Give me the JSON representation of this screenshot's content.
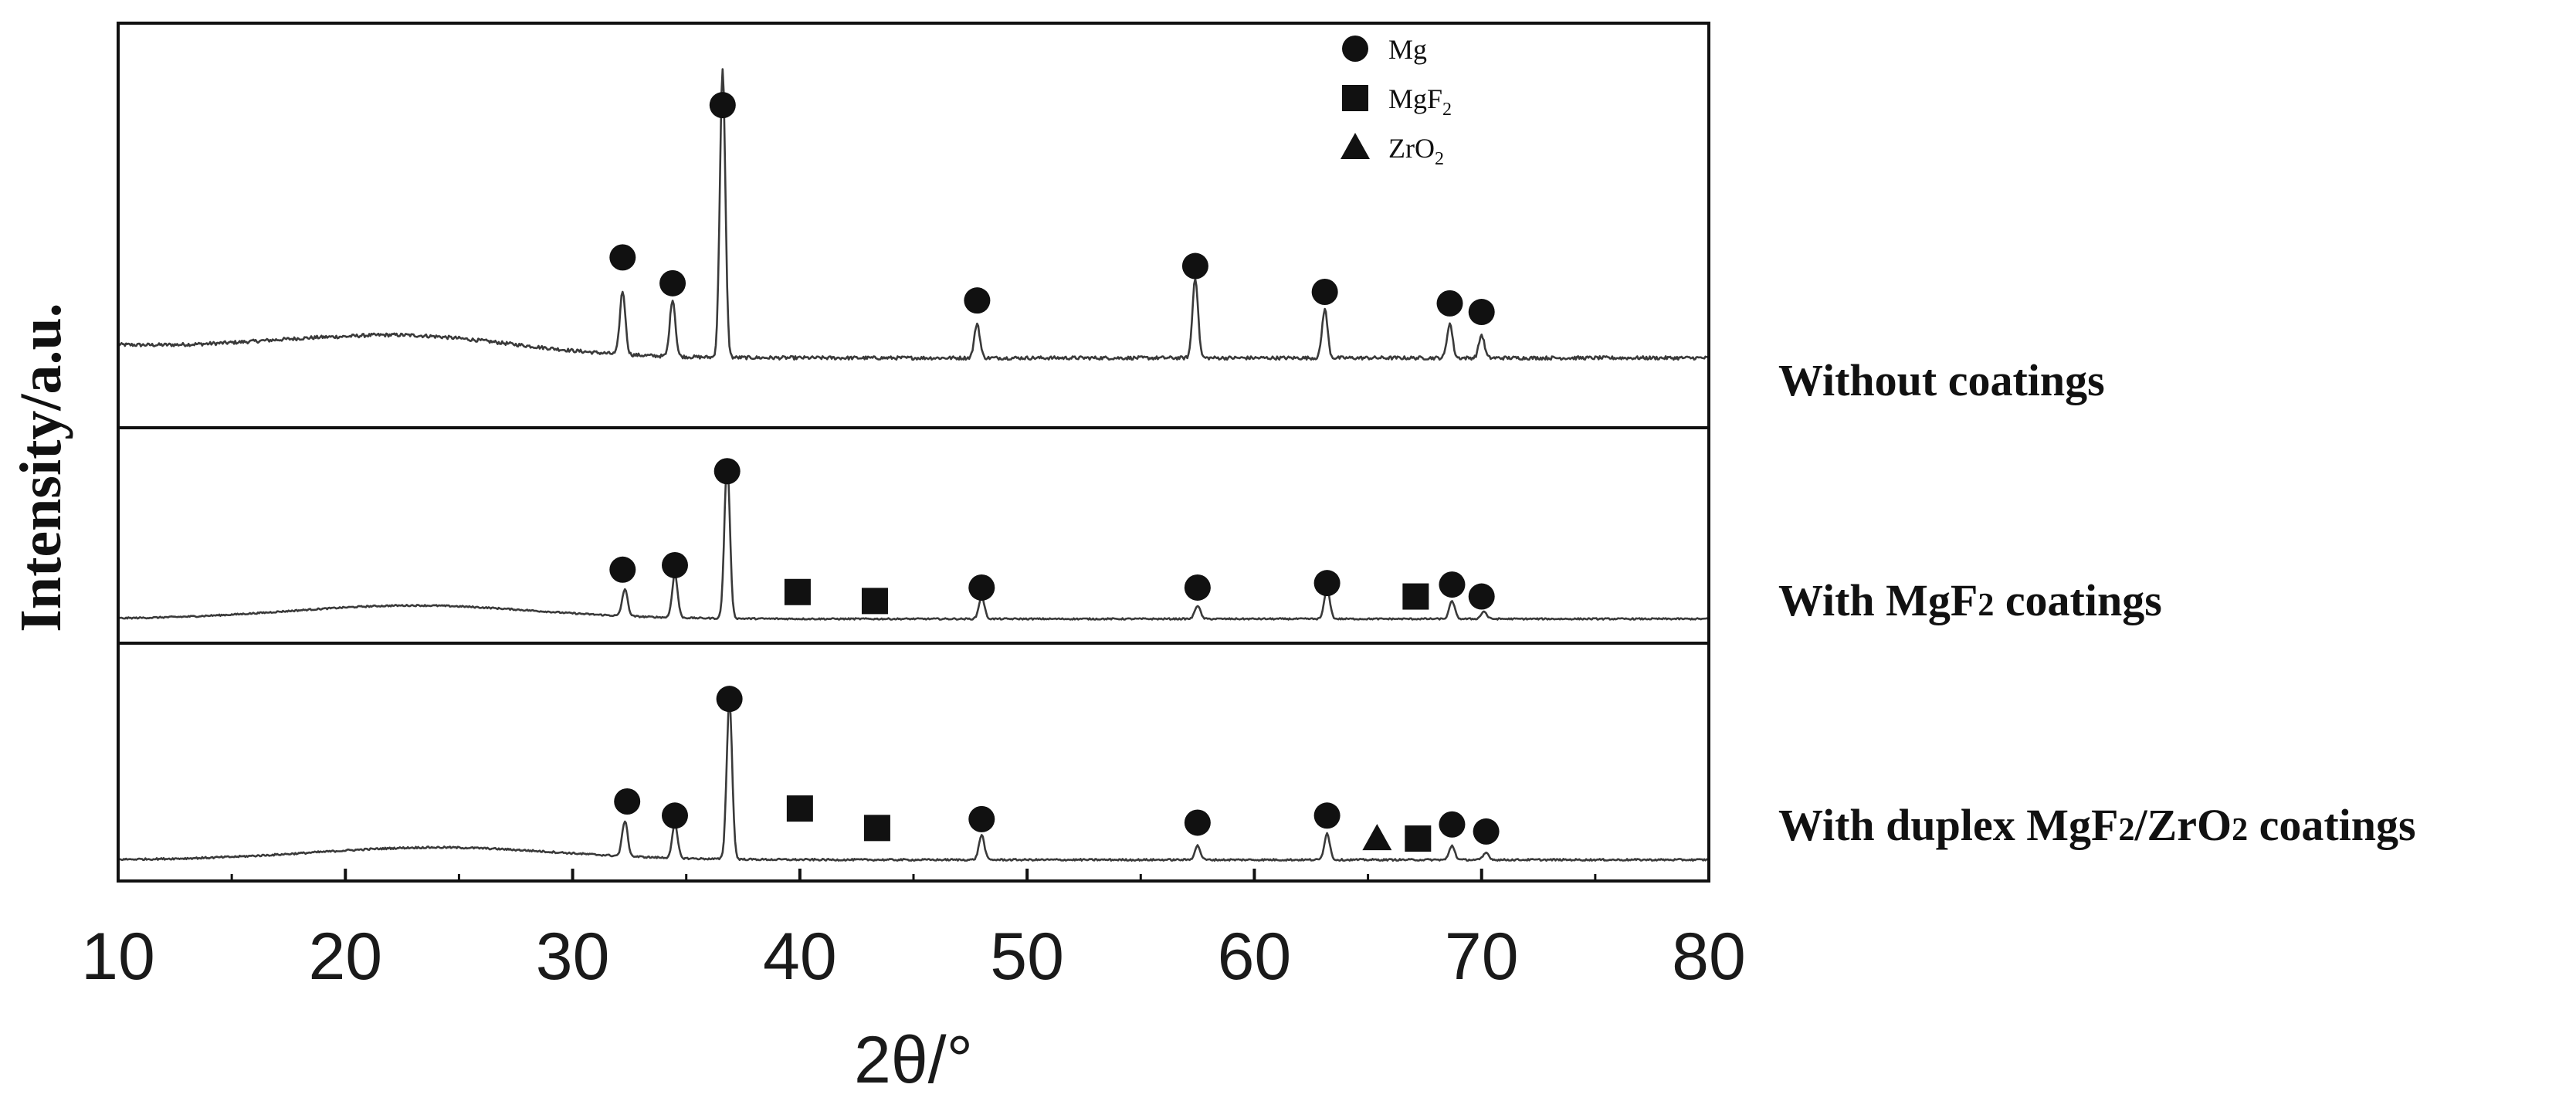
{
  "chart_data": {
    "type": "line",
    "title": "",
    "xlabel": "2θ/°",
    "ylabel": "Intensity/a.u.",
    "xlim": [
      10,
      80
    ],
    "xticks": [
      10,
      20,
      30,
      40,
      50,
      60,
      70,
      80
    ],
    "grid": false,
    "legend": {
      "placement": "top-right",
      "entries": [
        {
          "marker": "circle",
          "label": "Mg",
          "subscript": ""
        },
        {
          "marker": "square",
          "label": "MgF",
          "subscript": "2"
        },
        {
          "marker": "triangle",
          "label": "ZrO",
          "subscript": "2"
        }
      ]
    },
    "series": [
      {
        "name": "Without coatings",
        "label_parts": [
          {
            "t": "Without  coatings"
          }
        ],
        "baseline": 0.2,
        "hump": {
          "center": 22,
          "width": 7.5,
          "height": 0.08
        },
        "decay": 0.04,
        "noise": 0.012,
        "peaks": [
          {
            "x": 32.2,
            "h": 0.22
          },
          {
            "x": 34.4,
            "h": 0.2
          },
          {
            "x": 36.6,
            "h": 1.0
          },
          {
            "x": 47.8,
            "h": 0.12
          },
          {
            "x": 57.4,
            "h": 0.28
          },
          {
            "x": 63.1,
            "h": 0.17
          },
          {
            "x": 68.6,
            "h": 0.12
          },
          {
            "x": 70.0,
            "h": 0.08
          }
        ],
        "markers": [
          {
            "x": 32.2,
            "type": "circle",
            "level": 0.55
          },
          {
            "x": 34.4,
            "type": "circle",
            "level": 0.46
          },
          {
            "x": 36.6,
            "type": "circle",
            "level": 1.08
          },
          {
            "x": 47.8,
            "type": "circle",
            "level": 0.4
          },
          {
            "x": 57.4,
            "type": "circle",
            "level": 0.52
          },
          {
            "x": 63.1,
            "type": "circle",
            "level": 0.43
          },
          {
            "x": 68.6,
            "type": "circle",
            "level": 0.39
          },
          {
            "x": 70.0,
            "type": "circle",
            "level": 0.36
          }
        ]
      },
      {
        "name": "With MgF2 coatings",
        "label_parts": [
          {
            "t": "With MgF"
          },
          {
            "t": "2",
            "small": true
          },
          {
            "t": " coatings"
          }
        ],
        "baseline": 0.08,
        "hump": {
          "center": 23,
          "width": 7.5,
          "height": 0.09
        },
        "decay": 0.0,
        "noise": 0.01,
        "peaks": [
          {
            "x": 32.3,
            "h": 0.18
          },
          {
            "x": 34.5,
            "h": 0.29
          },
          {
            "x": 36.8,
            "h": 1.05
          },
          {
            "x": 48.0,
            "h": 0.15
          },
          {
            "x": 57.5,
            "h": 0.09
          },
          {
            "x": 63.2,
            "h": 0.21
          },
          {
            "x": 68.7,
            "h": 0.12
          },
          {
            "x": 70.1,
            "h": 0.05
          }
        ],
        "markers": [
          {
            "x": 32.2,
            "type": "circle",
            "level": 0.41
          },
          {
            "x": 34.5,
            "type": "circle",
            "level": 0.44
          },
          {
            "x": 36.8,
            "type": "circle",
            "level": 1.07
          },
          {
            "x": 39.9,
            "type": "square",
            "level": 0.26
          },
          {
            "x": 43.3,
            "type": "square",
            "level": 0.2
          },
          {
            "x": 48.0,
            "type": "circle",
            "level": 0.29
          },
          {
            "x": 57.5,
            "type": "circle",
            "level": 0.29
          },
          {
            "x": 63.2,
            "type": "circle",
            "level": 0.32
          },
          {
            "x": 67.1,
            "type": "square",
            "level": 0.23
          },
          {
            "x": 68.7,
            "type": "circle",
            "level": 0.31
          },
          {
            "x": 70.0,
            "type": "circle",
            "level": 0.23
          }
        ]
      },
      {
        "name": "With duplex MgF2/ZrO2 coatings",
        "label_parts": [
          {
            "t": "With duplex MgF"
          },
          {
            "t": "2",
            "small": true
          },
          {
            "t": "/ZrO"
          },
          {
            "t": "2",
            "small": true
          },
          {
            "t": " coatings"
          }
        ],
        "baseline": 0.05,
        "hump": {
          "center": 24,
          "width": 7.5,
          "height": 0.07
        },
        "decay": 0.0,
        "noise": 0.01,
        "peaks": [
          {
            "x": 32.3,
            "h": 0.2
          },
          {
            "x": 34.5,
            "h": 0.19
          },
          {
            "x": 36.9,
            "h": 0.9
          },
          {
            "x": 48.0,
            "h": 0.14
          },
          {
            "x": 57.5,
            "h": 0.08
          },
          {
            "x": 63.2,
            "h": 0.15
          },
          {
            "x": 68.7,
            "h": 0.08
          },
          {
            "x": 70.2,
            "h": 0.04
          }
        ],
        "markers": [
          {
            "x": 32.4,
            "type": "circle",
            "level": 0.38
          },
          {
            "x": 34.5,
            "type": "circle",
            "level": 0.3
          },
          {
            "x": 36.9,
            "type": "circle",
            "level": 0.96
          },
          {
            "x": 40.0,
            "type": "square",
            "level": 0.34
          },
          {
            "x": 43.4,
            "type": "square",
            "level": 0.23
          },
          {
            "x": 48.0,
            "type": "circle",
            "level": 0.28
          },
          {
            "x": 57.5,
            "type": "circle",
            "level": 0.26
          },
          {
            "x": 63.2,
            "type": "circle",
            "level": 0.3
          },
          {
            "x": 65.4,
            "type": "triangle",
            "level": 0.17
          },
          {
            "x": 67.2,
            "type": "square",
            "level": 0.17
          },
          {
            "x": 68.7,
            "type": "circle",
            "level": 0.25
          },
          {
            "x": 70.2,
            "type": "circle",
            "level": 0.21
          }
        ]
      }
    ]
  }
}
